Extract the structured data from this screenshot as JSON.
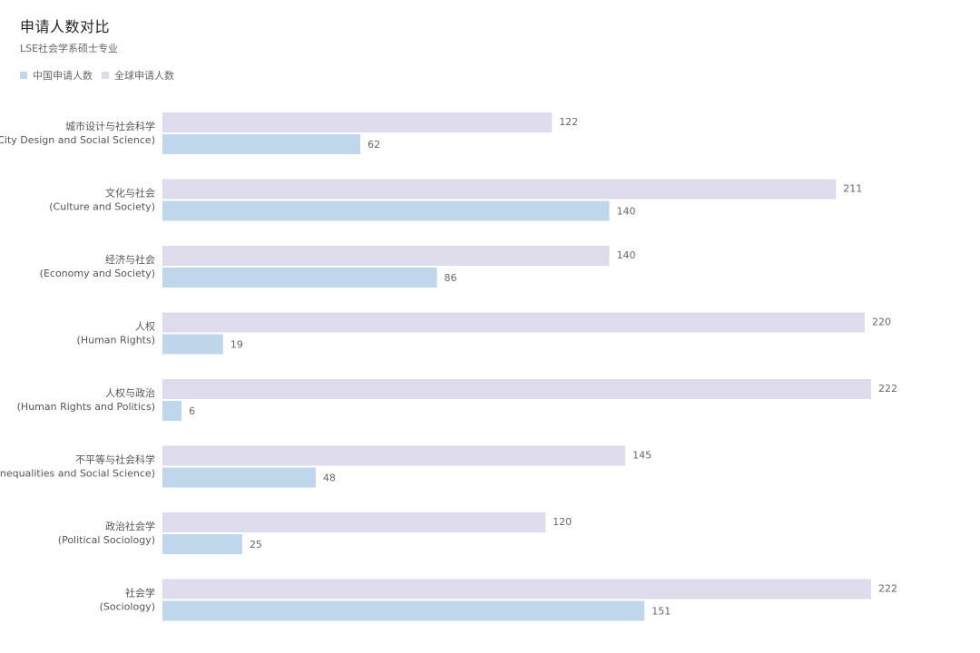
{
  "chart_data": {
    "type": "bar",
    "orientation": "horizontal",
    "title": "申请人数对比",
    "subtitle": "LSE社会学系硕士专业",
    "legend_position": "top-left",
    "grid": false,
    "xlim": [
      0,
      222
    ],
    "categories": [
      {
        "zh": "城市设计与社会科学",
        "en": "(City Design and Social Science)"
      },
      {
        "zh": "文化与社会",
        "en": "(Culture and Society)"
      },
      {
        "zh": "经济与社会",
        "en": "(Economy and Society)"
      },
      {
        "zh": "人权",
        "en": "(Human Rights)"
      },
      {
        "zh": "人权与政治",
        "en": "(Human Rights and Politics)"
      },
      {
        "zh": "不平等与社会科学",
        "en": "(Inequalities and Social Science)"
      },
      {
        "zh": "政治社会学",
        "en": "(Political Sociology)"
      },
      {
        "zh": "社会学",
        "en": "(Sociology)"
      }
    ],
    "series": [
      {
        "name": "中国申请人数",
        "color": "#bed7ea",
        "values": [
          62,
          140,
          86,
          19,
          6,
          48,
          25,
          151
        ]
      },
      {
        "name": "全球申请人数",
        "color": "#dedcec",
        "values": [
          122,
          211,
          140,
          220,
          222,
          145,
          120,
          222
        ]
      }
    ]
  }
}
